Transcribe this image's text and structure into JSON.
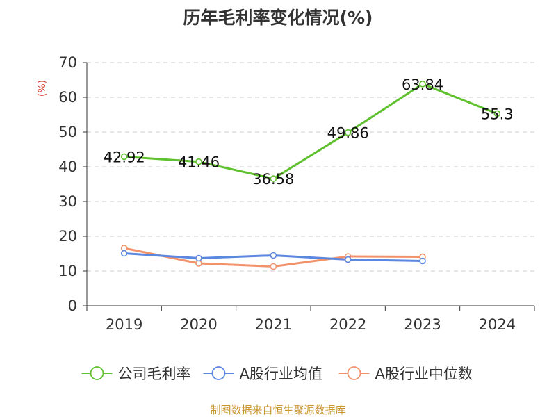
{
  "chart_data": {
    "type": "line",
    "title": "历年毛利率变化情况(%)",
    "ylabel": "(%)",
    "xlabel": "",
    "categories": [
      "2019",
      "2020",
      "2021",
      "2022",
      "2023",
      "2024"
    ],
    "ylim": [
      0,
      70
    ],
    "yticks": [
      0,
      10,
      20,
      30,
      40,
      50,
      60,
      70
    ],
    "grid": true,
    "legend_position": "bottom",
    "series": [
      {
        "name": "公司毛利率",
        "color": "#5ec12d",
        "values": [
          42.92,
          41.46,
          36.58,
          49.86,
          63.84,
          55.3
        ],
        "labels": [
          "42.92",
          "41.46",
          "36.58",
          "49.86",
          "63.84",
          "55.3"
        ]
      },
      {
        "name": "A股行业均值",
        "color": "#5b87e0",
        "values": [
          15.1,
          13.7,
          14.5,
          13.3,
          12.9,
          null
        ]
      },
      {
        "name": "A股行业中位数",
        "color": "#f2926a",
        "values": [
          16.6,
          12.2,
          11.3,
          14.2,
          14.1,
          null
        ]
      }
    ]
  },
  "footer": {
    "source": "制图数据来自恒生聚源数据库",
    "color": "#c8952e"
  }
}
